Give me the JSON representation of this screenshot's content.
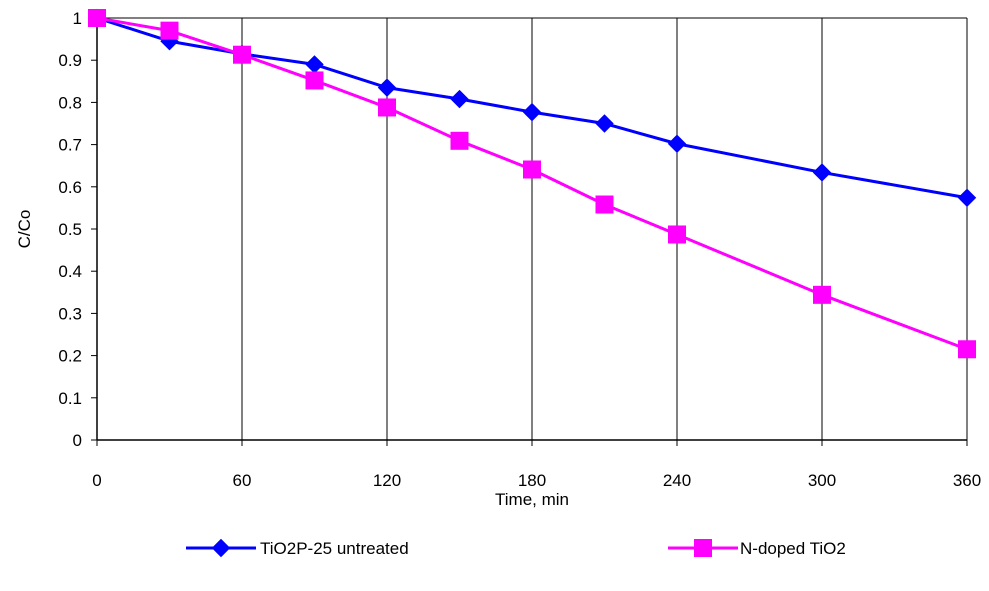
{
  "chart_data": {
    "type": "line",
    "title": "",
    "xlabel": "Time, min",
    "ylabel": "C/Co",
    "x_ticks": [
      0,
      60,
      120,
      180,
      240,
      300,
      360
    ],
    "y_ticks": [
      0,
      0.1,
      0.2,
      0.3,
      0.4,
      0.5,
      0.6,
      0.7,
      0.8,
      0.9,
      1
    ],
    "xlim": [
      0,
      360
    ],
    "ylim": [
      0,
      1
    ],
    "grid": "vertical",
    "legend_position": "bottom",
    "series": [
      {
        "name": "TiO2P-25 untreated",
        "color": "#0000FF",
        "marker": "diamond",
        "x": [
          0,
          30,
          60,
          90,
          120,
          150,
          180,
          210,
          240,
          300,
          360
        ],
        "y": [
          1.0,
          0.945,
          0.915,
          0.89,
          0.835,
          0.808,
          0.777,
          0.75,
          0.702,
          0.634,
          0.574
        ]
      },
      {
        "name": "N-doped TiO2",
        "color": "#FF00FF",
        "marker": "square",
        "x": [
          0,
          30,
          60,
          90,
          120,
          150,
          180,
          210,
          240,
          300,
          360
        ],
        "y": [
          1.0,
          0.97,
          0.913,
          0.852,
          0.788,
          0.709,
          0.641,
          0.558,
          0.487,
          0.344,
          0.215
        ]
      }
    ]
  }
}
